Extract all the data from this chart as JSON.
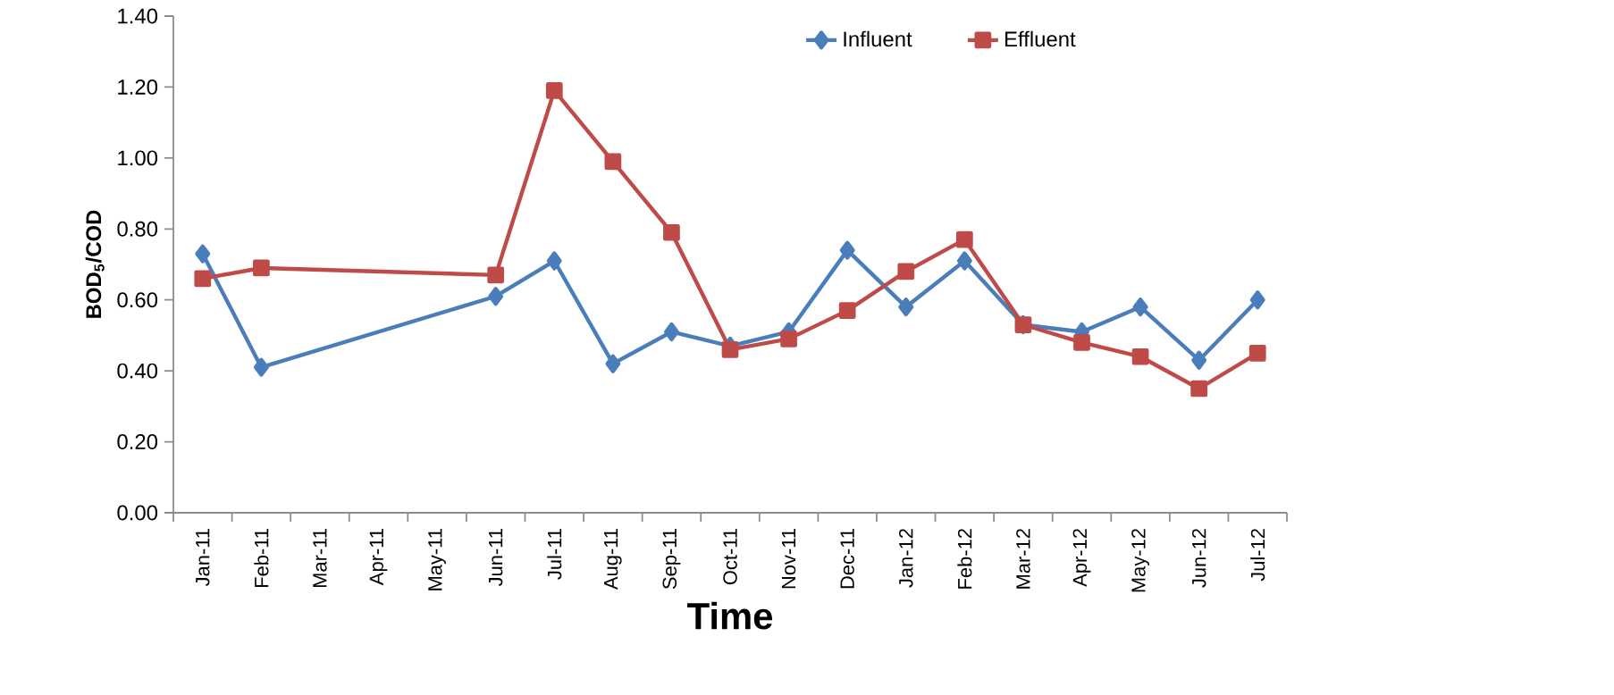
{
  "chart_data": {
    "type": "line",
    "xlabel": "Time",
    "ylabel": "BOD$_{5}$/COD",
    "categories": [
      "Jan-11",
      "Feb-11",
      "Mar-11",
      "Apr-11",
      "May-11",
      "Jun-11",
      "Jul-11",
      "Aug-11",
      "Sep-11",
      "Oct-11",
      "Nov-11",
      "Dec-11",
      "Jan-12",
      "Feb-12",
      "Mar-12",
      "Apr-12",
      "May-12",
      "Jun-12",
      "Jul-12"
    ],
    "series": [
      {
        "name": "Influent",
        "color": "#4a7ebb",
        "marker": "diamond",
        "values": [
          0.73,
          0.41,
          null,
          null,
          null,
          0.61,
          0.71,
          0.42,
          0.51,
          0.47,
          0.51,
          0.74,
          0.58,
          0.71,
          0.53,
          0.51,
          0.58,
          0.43,
          0.6
        ]
      },
      {
        "name": "Effluent",
        "color": "#be4b48",
        "marker": "square",
        "values": [
          0.66,
          0.69,
          null,
          null,
          null,
          0.67,
          1.19,
          0.99,
          0.79,
          0.46,
          0.49,
          0.57,
          0.68,
          0.77,
          0.53,
          0.48,
          0.44,
          0.35,
          0.45
        ]
      }
    ],
    "ylim": [
      0,
      1.4
    ],
    "yticks": [
      {
        "value": 0,
        "label": "0.00"
      },
      {
        "value": 0.2,
        "label": "0.20"
      },
      {
        "value": 0.4,
        "label": "0.40"
      },
      {
        "value": 0.6,
        "label": "0.60"
      },
      {
        "value": 0.8,
        "label": "0.80"
      },
      {
        "value": 1.0,
        "label": "1.00"
      },
      {
        "value": 1.2,
        "label": "1.20"
      },
      {
        "value": 1.4,
        "label": "1.40"
      }
    ],
    "grid": false,
    "legend": "top",
    "line_style": "solid"
  }
}
